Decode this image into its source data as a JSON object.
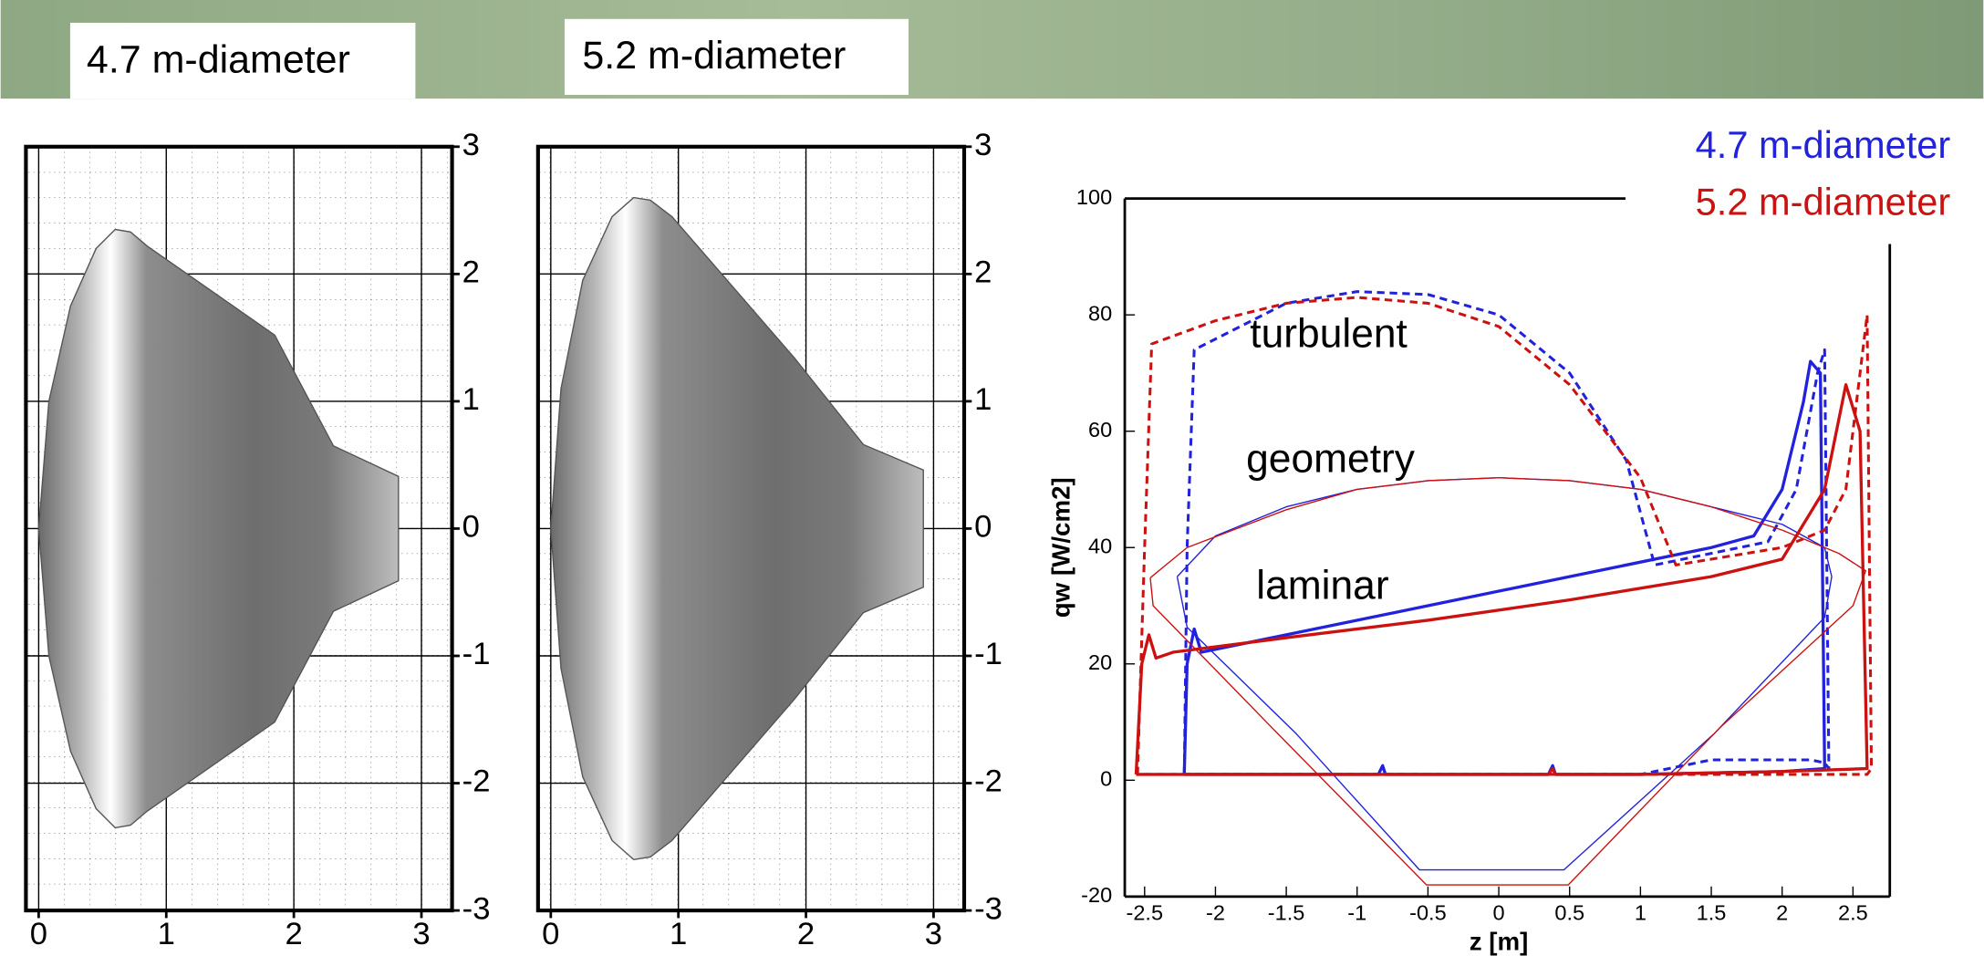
{
  "header": {
    "labels": [
      "4.7 m-diameter",
      "5.2 m-diameter"
    ]
  },
  "chart_data": [
    {
      "type": "geometry",
      "xlim": [
        -0.1,
        3.24
      ],
      "ylim": [
        -3,
        3
      ],
      "xticks": [
        0,
        1,
        2,
        3
      ],
      "yticks": [
        3,
        2,
        1,
        0,
        -1,
        -2,
        -3
      ],
      "grid": true,
      "outline": {
        "x": [
          0,
          0.08,
          0.25,
          0.45,
          0.6,
          0.72,
          0.85,
          1.85,
          2.31,
          2.82,
          2.82,
          2.31,
          1.85,
          0.85,
          0.72,
          0.6,
          0.45,
          0.25,
          0.08,
          0
        ],
        "y": [
          0,
          1.0,
          1.75,
          2.2,
          2.35,
          2.33,
          2.22,
          1.52,
          0.65,
          0.41,
          -0.41,
          -0.65,
          -1.52,
          -2.22,
          -2.33,
          -2.35,
          -2.2,
          -1.75,
          -1.0,
          0
        ]
      }
    },
    {
      "type": "geometry",
      "xlim": [
        -0.1,
        3.24
      ],
      "ylim": [
        -3,
        3
      ],
      "xticks": [
        0,
        1,
        2,
        3
      ],
      "yticks": [
        3,
        2,
        1,
        0,
        -1,
        -2,
        -3
      ],
      "grid": true,
      "outline": {
        "x": [
          0,
          0.08,
          0.25,
          0.48,
          0.65,
          0.78,
          0.95,
          1.91,
          2.45,
          2.92,
          2.92,
          2.45,
          1.91,
          0.95,
          0.78,
          0.65,
          0.48,
          0.25,
          0.08,
          0
        ],
        "y": [
          0,
          1.1,
          1.95,
          2.45,
          2.6,
          2.58,
          2.45,
          1.34,
          0.66,
          0.46,
          -0.46,
          -0.66,
          -1.34,
          -2.45,
          -2.58,
          -2.6,
          -2.45,
          -1.95,
          -1.1,
          0
        ]
      }
    },
    {
      "type": "line",
      "xlabel": "z [m]",
      "ylabel": "qw [W/cm2]",
      "xlim": [
        -2.64,
        2.76
      ],
      "ylim": [
        -20,
        100
      ],
      "xticks": [
        -2.5,
        -2,
        -1.5,
        -1,
        -0.5,
        0,
        0.5,
        1,
        1.5,
        2,
        2.5
      ],
      "yticks": [
        -20,
        0,
        20,
        40,
        60,
        80,
        100
      ],
      "annotations": [
        "turbulent",
        "geometry",
        "laminar"
      ],
      "series": [
        {
          "name": "4.7 m-diameter",
          "color": "#2222dd",
          "lines": [
            {
              "style": "dashed",
              "x": [
                -2.22,
                -2.2,
                -2.15,
                -1.5,
                -1,
                -0.5,
                0,
                0.5,
                0.9,
                1.1,
                1.5,
                1.9,
                2.1,
                2.25,
                2.3,
                2.33,
                2.3,
                2.2,
                1.5,
                1,
                0.5,
                0,
                -0.5,
                -1,
                -1.5,
                -2,
                -2.22
              ],
              "values": [
                1,
                40,
                74,
                82,
                84,
                83.5,
                80,
                70,
                55,
                37,
                39,
                41,
                50,
                70,
                74,
                2,
                3,
                3.5,
                3.5,
                1,
                1,
                1,
                1,
                1,
                1,
                1,
                1
              ]
            },
            {
              "style": "solid",
              "x": [
                -2.22,
                -2.2,
                -2.15,
                -2.1,
                -1.5,
                -0.5,
                0.5,
                1.5,
                1.8,
                2.0,
                2.15,
                2.2,
                2.27,
                2.3,
                2,
                1,
                0.4,
                0.38,
                0.35,
                0,
                -0.8,
                -0.82,
                -0.85,
                -1.5,
                -2.22
              ],
              "values": [
                1,
                20,
                26,
                22,
                25,
                30,
                35,
                40,
                42,
                50,
                65,
                72,
                70,
                2,
                1.5,
                1,
                1,
                2.5,
                1,
                1,
                1,
                2.5,
                1,
                1,
                1
              ]
            },
            {
              "style": "thin",
              "x": [
                -2.27,
                -2.0,
                -1.5,
                -1,
                -0.5,
                0,
                0.5,
                1,
                1.5,
                2.0,
                2.3,
                2.35,
                2.3,
                1.52,
                0.46,
                -0.56,
                -1.43,
                -2.2,
                -2.27
              ],
              "values": [
                35,
                42,
                47,
                50,
                51.5,
                52,
                51.5,
                50,
                47,
                44,
                40,
                35,
                28,
                8,
                -15.4,
                -15.4,
                8,
                26.3,
                35
              ]
            }
          ]
        },
        {
          "name": "5.2 m-diameter",
          "color": "#cc1111",
          "lines": [
            {
              "style": "dashed",
              "x": [
                -2.55,
                -2.5,
                -2.45,
                -2,
                -1.5,
                -1,
                -0.5,
                0,
                0.5,
                1,
                1.25,
                1.5,
                2,
                2.3,
                2.45,
                2.55,
                2.6,
                2.63,
                2.6,
                2,
                1,
                0,
                -1,
                -2,
                -2.4,
                -2.55
              ],
              "values": [
                1,
                40,
                75,
                79,
                82,
                83,
                82,
                78,
                68,
                52,
                37,
                38,
                40,
                43,
                50,
                70,
                80,
                2,
                1,
                1,
                1,
                1,
                1,
                1,
                1,
                1
              ]
            },
            {
              "style": "solid",
              "x": [
                -2.56,
                -2.52,
                -2.47,
                -2.42,
                -2.3,
                -1.5,
                -0.5,
                0.5,
                1.5,
                2.0,
                2.3,
                2.45,
                2.55,
                2.6,
                2,
                1,
                0.4,
                0.38,
                0.35,
                0,
                -1.5,
                -2.56
              ],
              "values": [
                1,
                20,
                25,
                21,
                22,
                24.5,
                27.5,
                31,
                35,
                38,
                50,
                68,
                60,
                2,
                1.5,
                1,
                1,
                2,
                1,
                1,
                1,
                1
              ]
            },
            {
              "style": "thin",
              "x": [
                -2.46,
                -2.2,
                -1.5,
                -1,
                -0.5,
                0,
                0.5,
                1,
                1.5,
                2.0,
                2.4,
                2.59,
                2.5,
                1.56,
                0.49,
                -0.51,
                -1.56,
                -2.44,
                -2.46
              ],
              "values": [
                34.8,
                40,
                46.5,
                50,
                51.5,
                52,
                51.5,
                50,
                47,
                43,
                39,
                36,
                30,
                9,
                -18,
                -18,
                8,
                30,
                34.8
              ]
            }
          ]
        }
      ]
    }
  ]
}
